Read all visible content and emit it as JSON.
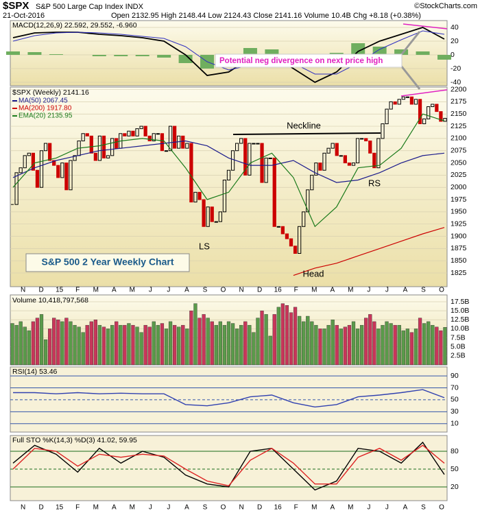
{
  "header": {
    "symbol": "$SPX",
    "name": "S&P 500 Large Cap Index INDX",
    "date": "21-Oct-2016",
    "stats": "Open 2132.95 High 2148.44 Low 2124.43 Close 2141.16 Volume 10.4B Chg +8.18 (+0.38%)",
    "credit": "©StockCharts.com"
  },
  "chart_data": [
    {
      "type": "candlestick",
      "title": "$SPX (Weekly) 2141.16",
      "up_color": "#000000",
      "down_color": "#cc0000",
      "close": [
        1965,
        2030,
        2040,
        2065,
        2070,
        2035,
        2000,
        2075,
        2090,
        2055,
        2045,
        2020,
        2050,
        1995,
        2055,
        2065,
        2095,
        2110,
        2105,
        2070,
        2055,
        2105,
        2060,
        2065,
        2100,
        2080,
        2110,
        2105,
        2115,
        2105,
        2120,
        2125,
        2105,
        2095,
        2110,
        2110,
        2075,
        2075,
        2125,
        2080,
        2105,
        2080,
        2090,
        1970,
        1990,
        1975,
        1920,
        1960,
        1930,
        1930,
        1950,
        2015,
        2035,
        2075,
        2090,
        2100,
        2025,
        2090,
        2090,
        2090,
        2010,
        2060,
        2060,
        1920,
        1920,
        1905,
        1895,
        1880,
        1865,
        1920,
        1950,
        1995,
        2025,
        2050,
        2035,
        2070,
        2080,
        2090,
        2065,
        2065,
        2050,
        2045,
        2050,
        2100,
        2100,
        2095,
        2070,
        2040,
        2100,
        2130,
        2160,
        2175,
        2170,
        2180,
        2185,
        2185,
        2170,
        2180,
        2130,
        2140,
        2165,
        2170,
        2155,
        2135,
        2141.16
      ],
      "series": [
        {
          "name": "MA(50) 2067.45",
          "color": "#1c1c8c",
          "values": [
            2020,
            2040,
            2055,
            2065,
            2075,
            2080,
            2085,
            2090,
            2095,
            2085,
            2060,
            2045,
            2045,
            2055,
            2030,
            2010,
            2015,
            2030,
            2050,
            2065,
            2070
          ]
        },
        {
          "name": "MA(200) 1917.80",
          "color": "#cc0000",
          "values": [
            null,
            null,
            null,
            null,
            null,
            null,
            null,
            null,
            null,
            null,
            null,
            null,
            null,
            1820,
            1835,
            1845,
            1860,
            1875,
            1890,
            1905,
            1918
          ]
        },
        {
          "name": "EMA(20) 2135.95",
          "color": "#1a7a1a",
          "values": [
            2000,
            2050,
            2060,
            2080,
            2085,
            2095,
            2100,
            2095,
            2040,
            1975,
            1990,
            2050,
            2070,
            2020,
            1920,
            1960,
            2040,
            2045,
            2080,
            2150,
            2136
          ]
        }
      ],
      "ylim": [
        1797,
        2205
      ],
      "yticks": [
        1825,
        1850,
        1875,
        1900,
        1925,
        1950,
        1975,
        2000,
        2025,
        2050,
        2075,
        2100,
        2125,
        2150,
        2175,
        2200
      ],
      "annotations": [
        "Neckline",
        "LS",
        "Head",
        "RS"
      ],
      "box_label": "S&P 500 2 Year Weekly Chart",
      "x_labels": [
        "N",
        "D",
        "15",
        "F",
        "M",
        "A",
        "M",
        "J",
        "J",
        "A",
        "S",
        "O",
        "N",
        "D",
        "16",
        "F",
        "M",
        "A",
        "M",
        "J",
        "J",
        "A",
        "S",
        "O"
      ]
    },
    {
      "type": "macd",
      "title": "MACD(12,26,9) 22.592, 29.552, -6.960",
      "note": "Potential neg divergence on next price high",
      "series": [
        {
          "color": "#000000",
          "values": [
            25,
            32,
            33,
            33,
            30,
            28,
            25,
            20,
            0,
            -30,
            -25,
            -5,
            0,
            -20,
            -40,
            -25,
            5,
            20,
            30,
            40,
            23
          ]
        },
        {
          "color": "#3030c0",
          "values": [
            20,
            28,
            32,
            33,
            32,
            30,
            27,
            24,
            12,
            -10,
            -22,
            -15,
            -8,
            -12,
            -28,
            -28,
            -12,
            8,
            22,
            35,
            30
          ]
        }
      ],
      "histogram": [
        5,
        4,
        1,
        0,
        -2,
        -2,
        -2,
        -4,
        -12,
        -20,
        -3,
        10,
        8,
        -8,
        -12,
        3,
        17,
        12,
        8,
        5,
        -7
      ],
      "hist_color": "#6fae5f",
      "ylim": [
        -45,
        50
      ],
      "yticks": [
        -40,
        -20,
        0,
        20,
        40
      ]
    },
    {
      "type": "bar",
      "title": "Volume 10,418,797,568",
      "up_color": "#5a9a4a",
      "down_color": "#c8365a",
      "values": [
        11.5,
        11,
        12,
        10.5,
        9.5,
        12,
        13,
        14,
        7,
        10,
        13,
        12.5,
        12,
        13,
        12,
        11,
        10.5,
        9,
        11,
        12,
        12.5,
        11,
        10.5,
        10,
        11,
        12,
        11,
        11,
        11.5,
        11,
        10.5,
        9,
        11,
        10.5,
        12,
        11,
        11.5,
        10,
        12,
        11,
        10.5,
        11,
        10,
        15,
        17,
        13,
        14,
        13,
        12,
        11,
        12,
        11,
        12,
        11.5,
        10,
        11,
        12,
        11,
        9,
        13,
        15,
        14,
        8,
        14,
        16,
        17,
        16.5,
        14.5,
        16,
        13.5,
        12,
        13.5,
        12,
        11,
        10,
        10,
        11,
        12.5,
        11,
        10,
        10.5,
        11,
        12,
        10,
        11,
        13,
        14,
        12,
        10,
        11,
        12,
        11.5,
        11,
        11,
        9.5,
        10,
        9,
        10,
        13,
        11.5,
        12,
        11,
        10.5,
        9.5,
        10.42
      ],
      "ylim": [
        0,
        19.4
      ],
      "yticks": [
        {
          "value": 2.5,
          "label": "2.5B"
        },
        {
          "value": 5,
          "label": "5.0B"
        },
        {
          "value": 7.5,
          "label": "7.5B"
        },
        {
          "value": 10,
          "label": "10.0B"
        },
        {
          "value": 12.5,
          "label": "12.5B"
        },
        {
          "value": 15,
          "label": "15.0B"
        },
        {
          "value": 17.5,
          "label": "17.5B"
        }
      ]
    },
    {
      "type": "line",
      "title": "RSI(14) 53.46",
      "grid_color": "#3355aa",
      "series": [
        {
          "color": "#3040b0",
          "values": [
            62,
            62,
            60,
            62,
            60,
            61,
            60,
            60,
            42,
            40,
            45,
            55,
            58,
            45,
            38,
            42,
            55,
            58,
            62,
            67,
            53.46
          ]
        }
      ],
      "ylim": [
        -4,
        105
      ],
      "yticks": [
        10,
        30,
        50,
        70,
        90
      ]
    },
    {
      "type": "line",
      "title": "Full STO %K(14,3) %D(3) 41.02, 59.95",
      "grid_color": "#1a6a1a",
      "series": [
        {
          "color": "#000000",
          "values": [
            60,
            90,
            75,
            45,
            85,
            60,
            80,
            70,
            40,
            25,
            20,
            80,
            85,
            50,
            15,
            30,
            85,
            80,
            60,
            95,
            41.02
          ]
        },
        {
          "color": "#dd2222",
          "values": [
            50,
            85,
            80,
            55,
            75,
            70,
            75,
            72,
            50,
            30,
            22,
            65,
            85,
            60,
            25,
            25,
            70,
            85,
            65,
            90,
            59.95
          ]
        }
      ],
      "ylim": [
        -3,
        106.5
      ],
      "yticks": [
        20,
        50,
        80
      ],
      "x_labels": [
        "N",
        "D",
        "15",
        "F",
        "M",
        "A",
        "M",
        "J",
        "J",
        "A",
        "S",
        "O",
        "N",
        "D",
        "16",
        "F",
        "M",
        "A",
        "M",
        "J",
        "J",
        "A",
        "S",
        "O"
      ]
    }
  ]
}
